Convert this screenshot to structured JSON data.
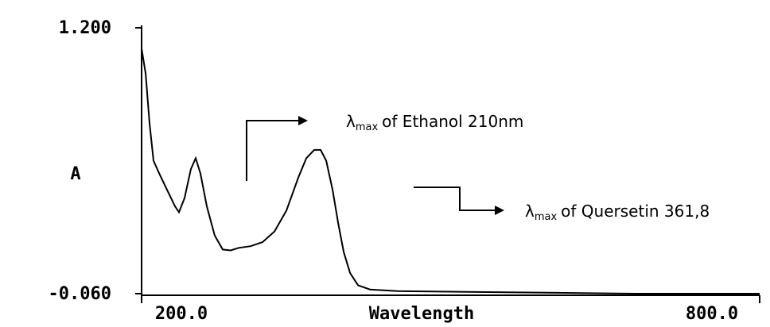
{
  "chart_data": {
    "type": "line",
    "x_label": "Wavelength",
    "y_label": "A",
    "xlim": [
      200,
      800
    ],
    "xticks": [
      {
        "value": 200,
        "label": "200.0"
      },
      {
        "value": 800,
        "label": "800.0"
      }
    ],
    "ylim": [
      -0.06,
      1.2
    ],
    "yticks": [
      {
        "value": -0.06,
        "label": "-0.060"
      },
      {
        "value": 1.2,
        "label": "1.200"
      }
    ],
    "annotations": [
      {
        "symbol": "λ",
        "sub": "max",
        "text": "of Ethanol 210nm"
      },
      {
        "symbol": "λ",
        "sub": "max",
        "text": "of Quersetin  361,8"
      }
    ],
    "series": [
      {
        "color": "#000000",
        "x": [
          200.0,
          203.9,
          207.7,
          211.6,
          217.0,
          224.7,
          232.4,
          236.3,
          241.7,
          247.9,
          252.5,
          257.1,
          263.3,
          271.0,
          278.8,
          286.5,
          294.2,
          305.8,
          317.4,
          329.0,
          340.6,
          352.2,
          359.9,
          367.6,
          373.8,
          379.2,
          385.4,
          390.8,
          396.2,
          402.4,
          410.1,
          421.7,
          448.6,
          525.9,
          603.1,
          680.3,
          800.0
        ],
        "values": [
          1.102,
          0.983,
          0.747,
          0.57,
          0.511,
          0.432,
          0.354,
          0.326,
          0.393,
          0.531,
          0.582,
          0.511,
          0.354,
          0.216,
          0.149,
          0.145,
          0.157,
          0.165,
          0.184,
          0.235,
          0.334,
          0.491,
          0.582,
          0.621,
          0.621,
          0.57,
          0.432,
          0.275,
          0.137,
          0.038,
          -0.02,
          -0.04,
          -0.048,
          -0.052,
          -0.056,
          -0.06,
          -0.06
        ]
      }
    ]
  }
}
